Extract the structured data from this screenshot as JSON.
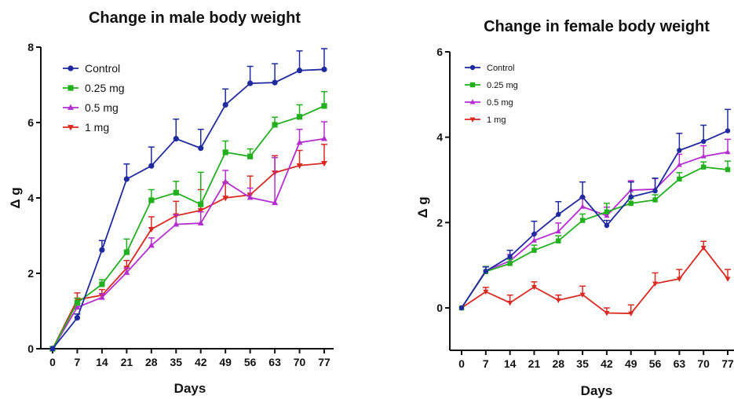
{
  "chart_data": [
    {
      "type": "line",
      "title": "Change in male body weight",
      "xlabel": "Days",
      "ylabel": "Δ g",
      "x": [
        0,
        7,
        14,
        21,
        28,
        35,
        42,
        49,
        56,
        63,
        70,
        77
      ],
      "xticks": [
        "0",
        "7",
        "14",
        "21",
        "28",
        "35",
        "42",
        "49",
        "56",
        "63",
        "70",
        "77"
      ],
      "yticks": [
        "0",
        "2",
        "4",
        "6",
        "8"
      ],
      "ylim": [
        0,
        8
      ],
      "legend": "top-left",
      "series": [
        {
          "name": "Control",
          "color": "#1f2a9e",
          "marker": "circle",
          "values": [
            0,
            0.82,
            2.62,
            4.5,
            4.85,
            5.57,
            5.32,
            6.47,
            7.04,
            7.06,
            7.38,
            7.41
          ],
          "errors": [
            0,
            0.1,
            0.25,
            0.4,
            0.5,
            0.52,
            0.5,
            0.42,
            0.45,
            0.5,
            0.52,
            0.55
          ]
        },
        {
          "name": "0.25 mg",
          "color": "#22b01e",
          "marker": "square",
          "values": [
            0,
            1.22,
            1.71,
            2.56,
            3.94,
            4.14,
            3.83,
            5.21,
            5.1,
            5.94,
            6.15,
            6.44
          ],
          "errors": [
            0,
            0.12,
            0.12,
            0.35,
            0.28,
            0.3,
            0.85,
            0.3,
            0.2,
            0.2,
            0.32,
            0.38
          ]
        },
        {
          "name": "0.5 mg",
          "color": "#b42ecf",
          "marker": "triangle-up",
          "values": [
            0,
            1.1,
            1.36,
            2.02,
            2.74,
            3.3,
            3.33,
            4.43,
            4.01,
            3.87,
            5.47,
            5.57
          ],
          "errors": [
            0,
            0.1,
            0.1,
            0.12,
            0.2,
            0.25,
            0.3,
            0.3,
            0.25,
            1.2,
            0.35,
            0.45
          ]
        },
        {
          "name": "1 mg",
          "color": "#d92a22",
          "marker": "triangle-down",
          "values": [
            0,
            1.3,
            1.42,
            2.14,
            3.17,
            3.53,
            3.67,
            4.0,
            4.08,
            4.67,
            4.86,
            4.92
          ],
          "errors": [
            0,
            0.18,
            0.15,
            0.2,
            0.33,
            0.38,
            0.55,
            0.42,
            0.5,
            0.45,
            0.4,
            0.5
          ]
        }
      ]
    },
    {
      "type": "line",
      "title": "Change in female body weight",
      "xlabel": "Days",
      "ylabel": "Δ g",
      "x": [
        0,
        7,
        14,
        21,
        28,
        35,
        42,
        49,
        56,
        63,
        70,
        77
      ],
      "xticks": [
        "0",
        "7",
        "14",
        "21",
        "28",
        "35",
        "42",
        "49",
        "56",
        "63",
        "70",
        "77"
      ],
      "yticks": [
        "0",
        "2",
        "4",
        "6"
      ],
      "ylim": [
        -1,
        6
      ],
      "legend": "top-left",
      "series": [
        {
          "name": "Control",
          "color": "#1f2a9e",
          "marker": "circle",
          "values": [
            0,
            0.86,
            1.2,
            1.73,
            2.19,
            2.6,
            1.93,
            2.6,
            2.74,
            3.69,
            3.9,
            4.15
          ],
          "errors": [
            0,
            0.1,
            0.15,
            0.3,
            0.3,
            0.35,
            0.12,
            0.35,
            0.3,
            0.4,
            0.38,
            0.5
          ]
        },
        {
          "name": "0.25 mg",
          "color": "#22b01e",
          "marker": "square",
          "values": [
            0,
            0.85,
            1.04,
            1.35,
            1.57,
            2.05,
            2.25,
            2.45,
            2.53,
            3.02,
            3.3,
            3.24
          ],
          "errors": [
            0,
            0.12,
            0.1,
            0.12,
            0.12,
            0.15,
            0.2,
            0.12,
            0.12,
            0.15,
            0.12,
            0.2
          ]
        },
        {
          "name": "0.5 mg",
          "color": "#b42ecf",
          "marker": "triangle-up",
          "values": [
            0,
            0.87,
            1.1,
            1.58,
            1.79,
            2.37,
            2.16,
            2.76,
            2.78,
            3.35,
            3.55,
            3.65
          ],
          "errors": [
            0,
            0.1,
            0.15,
            0.15,
            0.2,
            0.22,
            0.2,
            0.22,
            0.25,
            0.25,
            0.25,
            0.3
          ]
        },
        {
          "name": "1 mg",
          "color": "#d92a22",
          "marker": "triangle-down",
          "values": [
            0,
            0.38,
            0.12,
            0.49,
            0.18,
            0.31,
            -0.12,
            -0.13,
            0.57,
            0.68,
            1.41,
            0.68
          ],
          "errors": [
            0,
            0.1,
            0.18,
            0.12,
            0.12,
            0.2,
            0.12,
            0.2,
            0.25,
            0.22,
            0.15,
            0.22
          ]
        }
      ]
    }
  ]
}
